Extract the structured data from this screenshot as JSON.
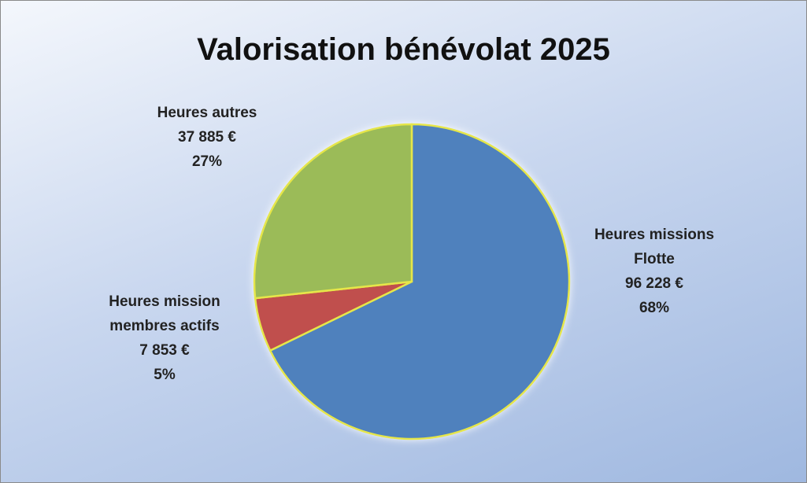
{
  "chart_data": {
    "type": "pie",
    "title": "Valorisation bénévolat 2025",
    "categories": [
      "Heures missions Flotte",
      "Heures mission membres actifs",
      "Heures autres"
    ],
    "values": [
      96228,
      7853,
      37885
    ],
    "value_labels": [
      "96 228 €",
      "7 853 €",
      "37 885 €"
    ],
    "percentages": [
      68,
      5,
      27
    ],
    "percentage_labels": [
      "68%",
      "5%",
      "27%"
    ],
    "colors": [
      "#4f81bd",
      "#c0504d",
      "#9bbb59"
    ]
  }
}
